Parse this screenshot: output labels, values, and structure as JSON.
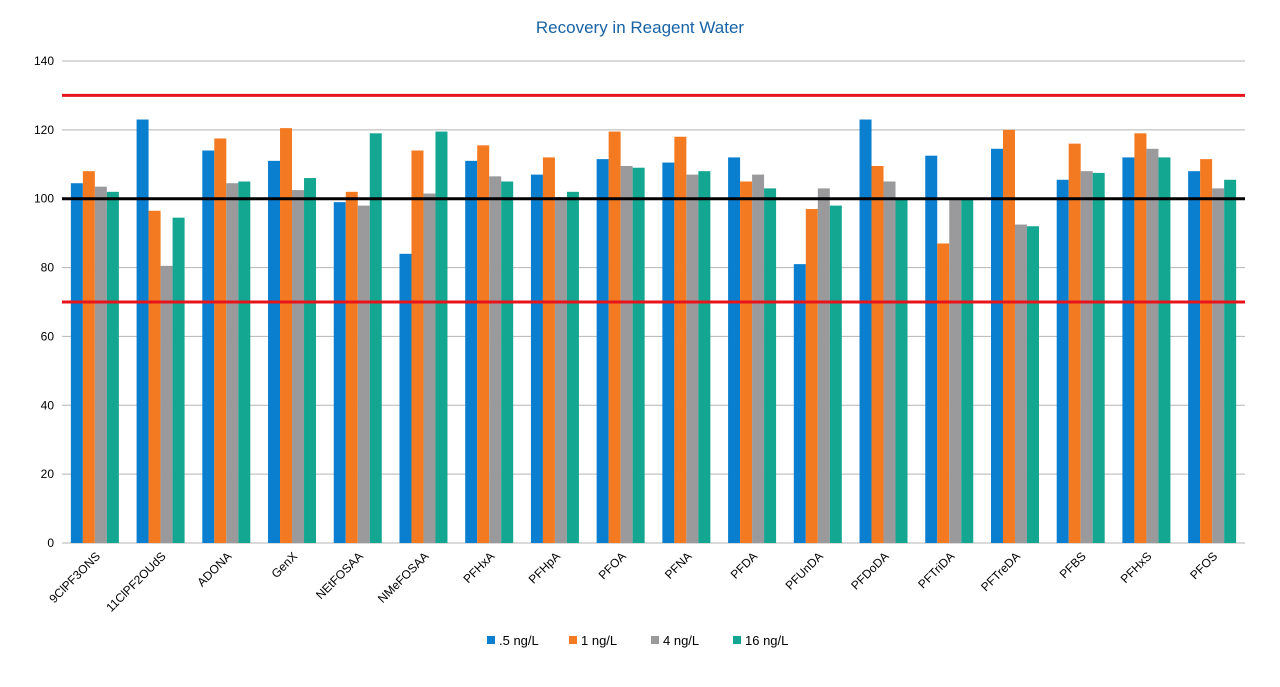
{
  "chart_data": {
    "type": "bar",
    "title": "Recovery in Reagent Water",
    "xlabel": "",
    "ylabel": "",
    "ylim": [
      0,
      140
    ],
    "yticks": [
      0,
      20,
      40,
      60,
      80,
      100,
      120,
      140
    ],
    "grid": true,
    "legend_position": "bottom",
    "categories": [
      "9ClPF3ONS",
      "11ClPF2OUdS",
      "ADONA",
      "GenX",
      "NEtFOSAA",
      "NMeFOSAA",
      "PFHxA",
      "PFHpA",
      "PFOA",
      "PFNA",
      "PFDA",
      "PFUnDA",
      "PFDoDA",
      "PFTriDA",
      "PFTreDA",
      "PFBS",
      "PFHxS",
      "PFOS"
    ],
    "series": [
      {
        "name": ".5 ng/L",
        "color": "#0a7fd0",
        "values": [
          104.5,
          123,
          114,
          111,
          99,
          84,
          111,
          107,
          111.5,
          110.5,
          112,
          81,
          123,
          112.5,
          114.5,
          105.5,
          112,
          108
        ]
      },
      {
        "name": "1 ng/L",
        "color": "#f37a20",
        "values": [
          108,
          96.5,
          117.5,
          120.5,
          102,
          114,
          115.5,
          112,
          119.5,
          118,
          105,
          97,
          109.5,
          87,
          120,
          116,
          119,
          111.5
        ]
      },
      {
        "name": "4 ng/L",
        "color": "#9a9a9c",
        "values": [
          103.5,
          80.5,
          104.5,
          102.5,
          98,
          101.5,
          106.5,
          100.5,
          109.5,
          107,
          107,
          103,
          105,
          100,
          92.5,
          108,
          114.5,
          103
        ]
      },
      {
        "name": "16 ng/L",
        "color": "#13a690",
        "values": [
          102,
          94.5,
          105,
          106,
          119,
          119.5,
          105,
          102,
          109,
          108,
          103,
          98,
          100,
          100,
          92,
          107.5,
          112,
          105.5
        ]
      }
    ],
    "reference_lines": [
      {
        "value": 130,
        "color": "#e8141c"
      },
      {
        "value": 100,
        "color": "#000000"
      },
      {
        "value": 70,
        "color": "#e8141c"
      }
    ],
    "title_color": "#1763a6"
  }
}
